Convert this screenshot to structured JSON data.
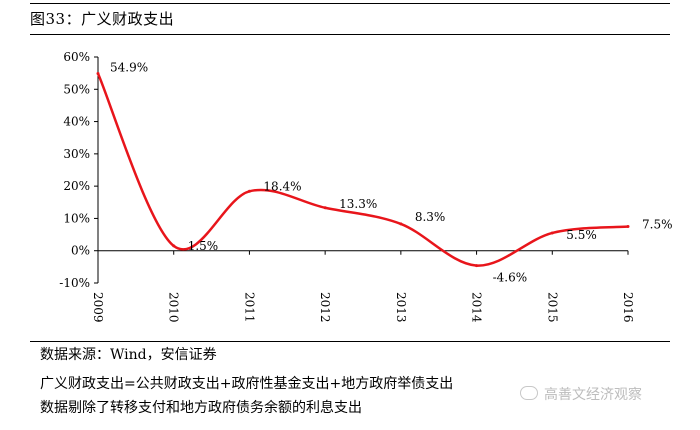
{
  "header": {
    "title": "图33：广义财政支出"
  },
  "chart_data": {
    "type": "line",
    "categories": [
      "2009",
      "2010",
      "2011",
      "2012",
      "2013",
      "2014",
      "2015",
      "2016"
    ],
    "series": [
      {
        "values": [
          54.9,
          1.5,
          18.4,
          13.3,
          8.3,
          -4.6,
          5.5,
          7.5
        ],
        "color": "#e8151b"
      }
    ],
    "data_labels": [
      "54.9%",
      "1.5%",
      "18.4%",
      "13.3%",
      "8.3%",
      "-4.6%",
      "5.5%",
      "7.5%"
    ],
    "y_ticks": [
      "60%",
      "50%",
      "40%",
      "30%",
      "20%",
      "10%",
      "0%",
      "-10%"
    ],
    "ylim": [
      -10,
      60
    ],
    "grid": false,
    "legend": "none"
  },
  "notes": {
    "source": "数据来源：Wind，安信证券",
    "line1": "广义财政支出=公共财政支出+政府性基金支出+地方政府举债支出",
    "line2": "数据剔除了转移支付和地方政府债务余额的利息支出"
  },
  "watermark": {
    "text": "高善文经济观察"
  }
}
